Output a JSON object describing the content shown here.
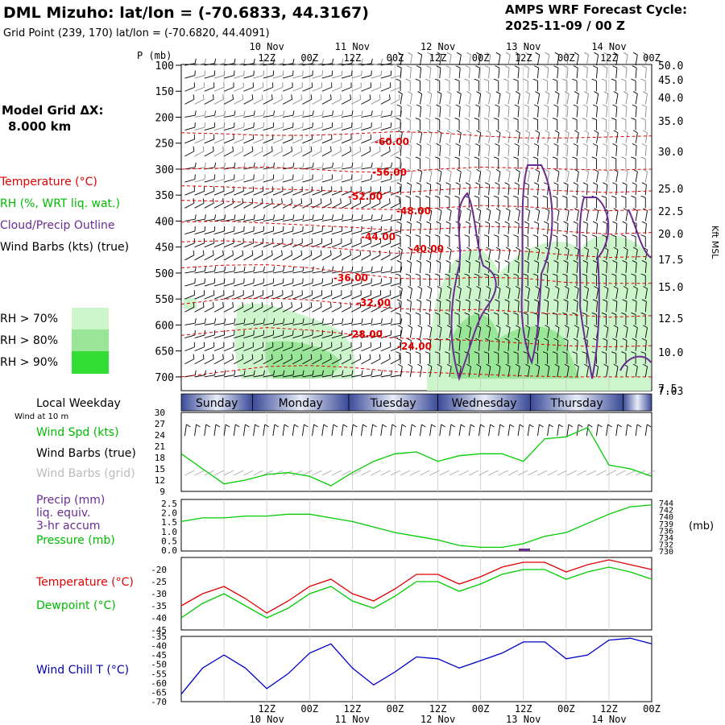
{
  "header": {
    "title": "DML Mizuho:  lat/lon = (-70.6833, 44.3167)",
    "grid_point": "Grid Point (239, 170) lat/lon = (-70.6820, 44.4091)",
    "cycle_label": "AMPS WRF Forecast Cycle:",
    "cycle_value": "2025-11-09 / 00  Z"
  },
  "model_grid": {
    "label": "Model Grid ΔX:",
    "value": "8.000 km"
  },
  "legend": {
    "temperature": "Temperature (°C)",
    "rh": "RH (%, WRT liq. wat.)",
    "cloud": "Cloud/Precip Outline",
    "wind": "Wind Barbs (kts) (true)",
    "rh70": "RH > 70%",
    "rh80": "RH > 80%",
    "rh90": "RH > 90%"
  },
  "colors": {
    "temperature": "#e00000",
    "dewpoint": "#00cc00",
    "rh70": "#ccf5cc",
    "rh80": "#99e699",
    "rh90": "#33dd33",
    "cloud": "#6a2c91",
    "windchill": "#0000cc",
    "day_bar": "#4a5aa8"
  },
  "time_axis": {
    "top_hours": [
      "12Z",
      "00Z",
      "12Z",
      "00Z",
      "12Z",
      "00Z",
      "12Z",
      "00Z",
      "12Z",
      "00Z"
    ],
    "dates": [
      "10 Nov",
      "11 Nov",
      "12 Nov",
      "13 Nov",
      "14 Nov"
    ]
  },
  "pressure_axis": {
    "label": "P (mb)",
    "levels": [
      "100",
      "150",
      "200",
      "250",
      "300",
      "350",
      "400",
      "450",
      "500",
      "550",
      "600",
      "650",
      "700"
    ]
  },
  "height_axis": {
    "label": "Kft MSL",
    "values": [
      "50.0",
      "45.0",
      "40.0",
      "35.0",
      "30.0",
      "25.0",
      "22.5",
      "20.0",
      "17.5",
      "15.0",
      "12.5",
      "10.0",
      "7.5",
      "7.03"
    ]
  },
  "temperature_labels": [
    "-60.00",
    "-56.00",
    "-52.00",
    "-48.00",
    "-44.00",
    "-40.00",
    "-36.00",
    "-32.00",
    "-28.00",
    "-24.00"
  ],
  "days": {
    "caption": "Local Weekday",
    "names": [
      "Sunday",
      "Monday",
      "Tuesday",
      "Wednesday",
      "Thursday"
    ]
  },
  "wind_panel": {
    "caption": "Wind at 10 m",
    "speed_label": "Wind Spd (kts)",
    "barbs_true": "Wind Barbs (true)",
    "barbs_grid": "Wind Barbs (grid)",
    "ticks": [
      "30",
      "27",
      "24",
      "21",
      "18",
      "15",
      "12",
      "9"
    ]
  },
  "precip_panel": {
    "precip_label": "Precip (mm)",
    "liq": "liq. equiv.",
    "accum": "3-hr accum",
    "pressure_label": "Pressure (mb)",
    "left_ticks": [
      "2.5",
      "2.0",
      "1.5",
      "1.0",
      "0.5",
      "0.0"
    ],
    "right_ticks": [
      "744",
      "742",
      "740",
      "739",
      "736",
      "734",
      "732",
      "730"
    ],
    "unit": "(mb)"
  },
  "temp_panel": {
    "temp_label": "Temperature (°C)",
    "dew_label": "Dewpoint (°C)",
    "ticks": [
      "-20",
      "-25",
      "-30",
      "-35",
      "-40",
      "-45"
    ]
  },
  "chill_panel": {
    "label": "Wind Chill T (°C)",
    "ticks": [
      "-35",
      "-40",
      "-45",
      "-50",
      "-55",
      "-60",
      "-65",
      "-70"
    ]
  },
  "chart_data": [
    {
      "type": "line",
      "title": "Cross-section temperature (°C) vs pressure",
      "x": [
        0,
        12,
        24,
        36,
        48,
        60,
        72,
        84,
        96,
        108,
        120,
        132
      ],
      "contours": [
        {
          "label": "-60",
          "p": [
            230,
            232,
            235,
            235,
            232,
            228,
            230,
            236,
            240,
            240,
            238,
            236
          ]
        },
        {
          "label": "-56",
          "p": [
            300,
            298,
            296,
            300,
            305,
            306,
            300,
            296,
            298,
            300,
            302,
            300
          ]
        },
        {
          "label": "-52",
          "p": [
            332,
            334,
            338,
            340,
            344,
            346,
            340,
            335,
            338,
            342,
            345,
            342
          ]
        },
        {
          "label": "-48",
          "p": [
            360,
            362,
            366,
            372,
            376,
            378,
            375,
            370,
            372,
            378,
            380,
            378
          ]
        },
        {
          "label": "-44",
          "p": [
            402,
            400,
            404,
            408,
            412,
            418,
            415,
            410,
            412,
            420,
            425,
            422
          ]
        },
        {
          "label": "-40",
          "p": [
            440,
            438,
            442,
            448,
            455,
            462,
            460,
            455,
            458,
            465,
            470,
            468
          ]
        },
        {
          "label": "-36",
          "p": [
            490,
            485,
            484,
            490,
            500,
            510,
            512,
            508,
            510,
            518,
            520,
            520
          ]
        },
        {
          "label": "-32",
          "p": [
            560,
            550,
            548,
            552,
            560,
            568,
            572,
            570,
            575,
            580,
            585,
            582
          ]
        },
        {
          "label": "-28",
          "p": [
            620,
            612,
            605,
            610,
            618,
            625,
            628,
            630,
            635,
            640,
            642,
            640
          ]
        },
        {
          "label": "-24",
          "p": [
            700,
            690,
            680,
            678,
            682,
            690,
            692,
            695,
            698,
            700,
            700,
            700
          ]
        }
      ]
    },
    {
      "type": "line",
      "title": "Wind Spd (kts)",
      "x": [
        0,
        6,
        12,
        18,
        24,
        30,
        36,
        42,
        48,
        54,
        60,
        66,
        72,
        78,
        84,
        90,
        96,
        102,
        108,
        114,
        120,
        126,
        132
      ],
      "series": [
        {
          "name": "Wind Spd (kts)",
          "values": [
            19,
            15,
            11,
            12,
            13.5,
            14,
            13,
            10.5,
            14,
            17,
            19,
            19.5,
            17,
            18.5,
            19,
            19,
            17,
            23,
            23.5,
            26,
            16,
            15,
            13
          ]
        }
      ],
      "ylim": [
        9,
        30
      ]
    },
    {
      "type": "line",
      "title": "Pressure (mb)",
      "x": [
        0,
        6,
        12,
        18,
        24,
        30,
        36,
        42,
        48,
        54,
        60,
        66,
        72,
        78,
        84,
        90,
        96,
        102,
        108,
        114,
        120,
        126,
        132
      ],
      "series": [
        {
          "name": "Pressure (mb)",
          "values": [
            738,
            739,
            739,
            739.5,
            739.5,
            740,
            740,
            739,
            738,
            736.5,
            735,
            734,
            733,
            731.5,
            731,
            731,
            732,
            734,
            735,
            737.5,
            740,
            742,
            742.5
          ]
        }
      ],
      "precip": [
        {
          "x": 99,
          "value": 0.05
        }
      ],
      "ylim": [
        730,
        744
      ]
    },
    {
      "type": "line",
      "title": "Temperature / Dewpoint (°C)",
      "x": [
        0,
        6,
        12,
        18,
        24,
        30,
        36,
        42,
        48,
        54,
        60,
        66,
        72,
        78,
        84,
        90,
        96,
        102,
        108,
        114,
        120,
        126,
        132
      ],
      "series": [
        {
          "name": "Temperature (°C)",
          "values": [
            -35,
            -30,
            -27,
            -32,
            -38,
            -33,
            -27,
            -24,
            -30,
            -33,
            -28,
            -22,
            -22,
            -26,
            -23,
            -19,
            -17,
            -17,
            -21,
            -18,
            -16,
            -18,
            -20
          ]
        },
        {
          "name": "Dewpoint (°C)",
          "values": [
            -40,
            -34,
            -30,
            -35,
            -40,
            -36,
            -30,
            -27,
            -33,
            -36,
            -31,
            -25,
            -25,
            -29,
            -26,
            -22,
            -20,
            -20,
            -24,
            -21,
            -19,
            -21,
            -24
          ]
        }
      ],
      "ylim": [
        -45,
        -15
      ]
    },
    {
      "type": "line",
      "title": "Wind Chill T (°C)",
      "x": [
        0,
        6,
        12,
        18,
        24,
        30,
        36,
        42,
        48,
        54,
        60,
        66,
        72,
        78,
        84,
        90,
        96,
        102,
        108,
        114,
        120,
        126,
        132
      ],
      "series": [
        {
          "name": "Wind Chill T (°C)",
          "values": [
            -66,
            -52,
            -45,
            -52,
            -63,
            -55,
            -44,
            -39,
            -52,
            -61,
            -54,
            -46,
            -47,
            -52,
            -48,
            -44,
            -38,
            -38,
            -47,
            -45,
            -37,
            -36,
            -39
          ]
        }
      ],
      "ylim": [
        -70,
        -35
      ]
    }
  ]
}
